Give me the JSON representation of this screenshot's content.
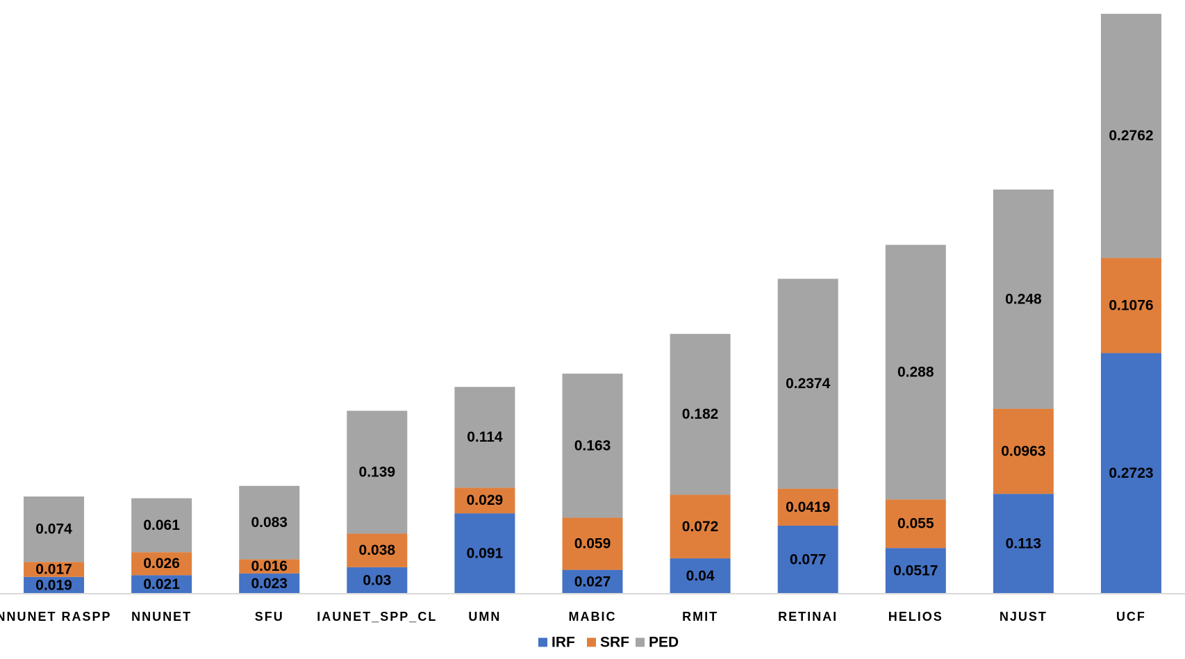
{
  "chart_data": {
    "type": "bar",
    "stacked": true,
    "title": "",
    "xlabel": "",
    "ylabel": "",
    "ylim": [
      0,
      0.656
    ],
    "grid": false,
    "legend_position": "bottom",
    "categories": [
      "NNUNET RASPP",
      "NNUNET",
      "SFU",
      "IAUNET_SPP_CL",
      "UMN",
      "MABIC",
      "RMIT",
      "RETINAI",
      "HELIOS",
      "NJUST",
      "UCF"
    ],
    "series": [
      {
        "name": "IRF",
        "color": "#4472C4",
        "values": [
          0.019,
          0.021,
          0.023,
          0.03,
          0.091,
          0.027,
          0.04,
          0.077,
          0.0517,
          0.113,
          0.2723
        ],
        "labels": [
          "0.019",
          "0.021",
          "0.023",
          "0.03",
          "0.091",
          "0.027",
          "0.04",
          "0.077",
          "0.0517",
          "0.113",
          "0.2723"
        ]
      },
      {
        "name": "SRF",
        "color": "#E07F3C",
        "values": [
          0.017,
          0.026,
          0.016,
          0.038,
          0.029,
          0.059,
          0.072,
          0.0419,
          0.055,
          0.0963,
          0.1076
        ],
        "labels": [
          "0.017",
          "0.026",
          "0.016",
          "0.038",
          "0.029",
          "0.059",
          "0.072",
          "0.0419",
          "0.055",
          "0.0963",
          "0.1076"
        ]
      },
      {
        "name": "PED",
        "color": "#A5A5A5",
        "values": [
          0.074,
          0.061,
          0.083,
          0.139,
          0.114,
          0.163,
          0.182,
          0.2374,
          0.288,
          0.248,
          0.2762
        ],
        "labels": [
          "0.074",
          "0.061",
          "0.083",
          "0.139",
          "0.114",
          "0.163",
          "0.182",
          "0.2374",
          "0.288",
          "0.248",
          "0.2762"
        ]
      }
    ]
  }
}
